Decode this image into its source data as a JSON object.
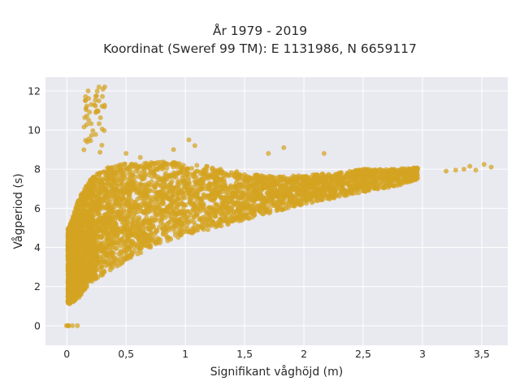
{
  "chart_data": {
    "type": "scatter",
    "title": "År 1979 - 2019",
    "subtitle": "Koordinat (Sweref 99 TM): E 1131986, N 6659117",
    "xlabel": "Signifikant våghöjd (m)",
    "ylabel": "Vågperiod (s)",
    "xlim": [
      -0.18,
      3.72
    ],
    "ylim": [
      -1.0,
      12.7
    ],
    "x_ticks": [
      0,
      0.5,
      1,
      1.5,
      2,
      2.5,
      3,
      3.5
    ],
    "x_tick_labels": [
      "0",
      "0,5",
      "1",
      "1,5",
      "2",
      "2,5",
      "3",
      "3,5"
    ],
    "y_ticks": [
      0,
      2,
      4,
      6,
      8,
      10,
      12
    ],
    "y_tick_labels": [
      "0",
      "2",
      "4",
      "6",
      "8",
      "10",
      "12"
    ],
    "grid": true,
    "point_color": "#d4a421",
    "background_color": "#e9e9f0",
    "clusters": [
      {
        "x": 0.05,
        "y": 0,
        "count": 6
      },
      {
        "x_range": [
          0.14,
          0.32
        ],
        "y_range": [
          8.6,
          12.2
        ],
        "count": 45
      }
    ],
    "density_envelope": [
      {
        "x": 0.02,
        "ymin": 1.1,
        "ymax": 5.0
      },
      {
        "x": 0.1,
        "ymin": 1.4,
        "ymax": 6.5
      },
      {
        "x": 0.2,
        "ymin": 2.2,
        "ymax": 7.5
      },
      {
        "x": 0.3,
        "ymin": 2.6,
        "ymax": 8.0
      },
      {
        "x": 0.5,
        "ymin": 3.3,
        "ymax": 8.3
      },
      {
        "x": 0.75,
        "ymin": 4.1,
        "ymax": 8.4
      },
      {
        "x": 1.0,
        "ymin": 4.6,
        "ymax": 8.3
      },
      {
        "x": 1.25,
        "ymin": 5.0,
        "ymax": 8.1
      },
      {
        "x": 1.5,
        "ymin": 5.4,
        "ymax": 7.8
      },
      {
        "x": 1.75,
        "ymin": 5.8,
        "ymax": 7.6
      },
      {
        "x": 2.0,
        "ymin": 6.2,
        "ymax": 7.7
      },
      {
        "x": 2.25,
        "ymin": 6.5,
        "ymax": 7.8
      },
      {
        "x": 2.5,
        "ymin": 6.8,
        "ymax": 8.0
      },
      {
        "x": 2.75,
        "ymin": 7.1,
        "ymax": 8.0
      },
      {
        "x": 3.0,
        "ymin": 7.5,
        "ymax": 8.1
      }
    ],
    "points": [
      {
        "x": 3.2,
        "y": 7.9
      },
      {
        "x": 3.28,
        "y": 7.95
      },
      {
        "x": 3.35,
        "y": 8.0
      },
      {
        "x": 3.4,
        "y": 8.15
      },
      {
        "x": 3.45,
        "y": 7.95
      },
      {
        "x": 3.52,
        "y": 8.25
      },
      {
        "x": 3.58,
        "y": 8.1
      },
      {
        "x": 0.18,
        "y": 12.0
      },
      {
        "x": 0.27,
        "y": 12.2
      },
      {
        "x": 0.32,
        "y": 12.2
      },
      {
        "x": 0.9,
        "y": 9.0
      },
      {
        "x": 1.03,
        "y": 9.5
      },
      {
        "x": 1.08,
        "y": 9.2
      },
      {
        "x": 1.7,
        "y": 8.8
      },
      {
        "x": 1.83,
        "y": 9.1
      },
      {
        "x": 2.17,
        "y": 8.8
      },
      {
        "x": 0.5,
        "y": 8.8
      },
      {
        "x": 0.62,
        "y": 8.6
      }
    ]
  }
}
